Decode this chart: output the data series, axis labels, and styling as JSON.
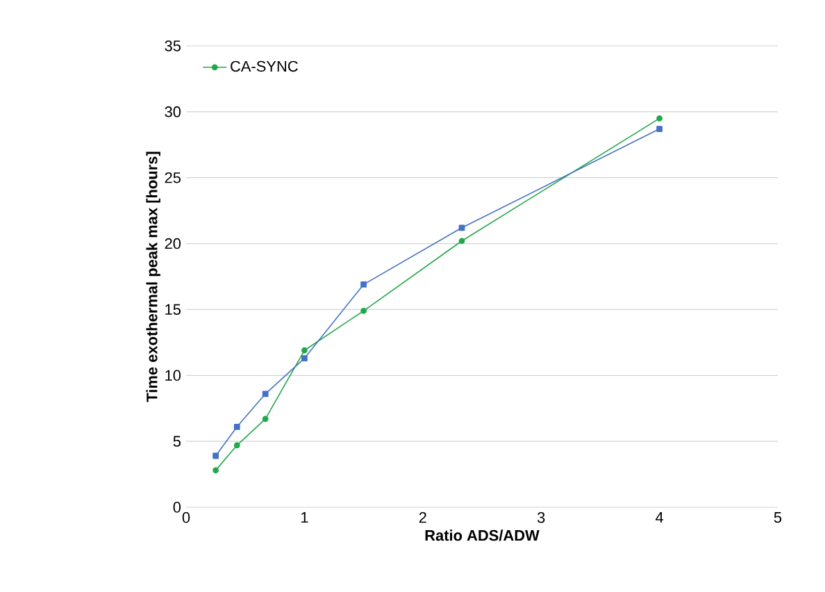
{
  "chart_data": {
    "type": "line",
    "xlabel": "Ratio ADS/ADW",
    "ylabel": "Time exothermal peak max [hours]",
    "xlim": [
      0,
      5
    ],
    "xticks": [
      0,
      1,
      2,
      3,
      4,
      5
    ],
    "ylim": [
      0,
      35
    ],
    "yticks": [
      0,
      5,
      10,
      15,
      20,
      25,
      30,
      35
    ],
    "grid": "y",
    "legend": "top left",
    "line_style": "solid",
    "series": [
      {
        "name": "CA-SYNC",
        "color": "#21a84a",
        "marker": "circle",
        "x": [
          0.25,
          0.43,
          0.67,
          1.0,
          1.5,
          2.33,
          4.0
        ],
        "values": [
          2.8,
          4.7,
          6.7,
          11.9,
          14.9,
          20.2,
          29.5
        ]
      },
      {
        "color": "#4472c4",
        "marker": "square",
        "x": [
          0.25,
          0.43,
          0.67,
          1.0,
          1.5,
          2.33,
          4.0
        ],
        "values": [
          3.9,
          6.1,
          8.6,
          11.3,
          16.9,
          21.2,
          28.7
        ]
      }
    ]
  }
}
